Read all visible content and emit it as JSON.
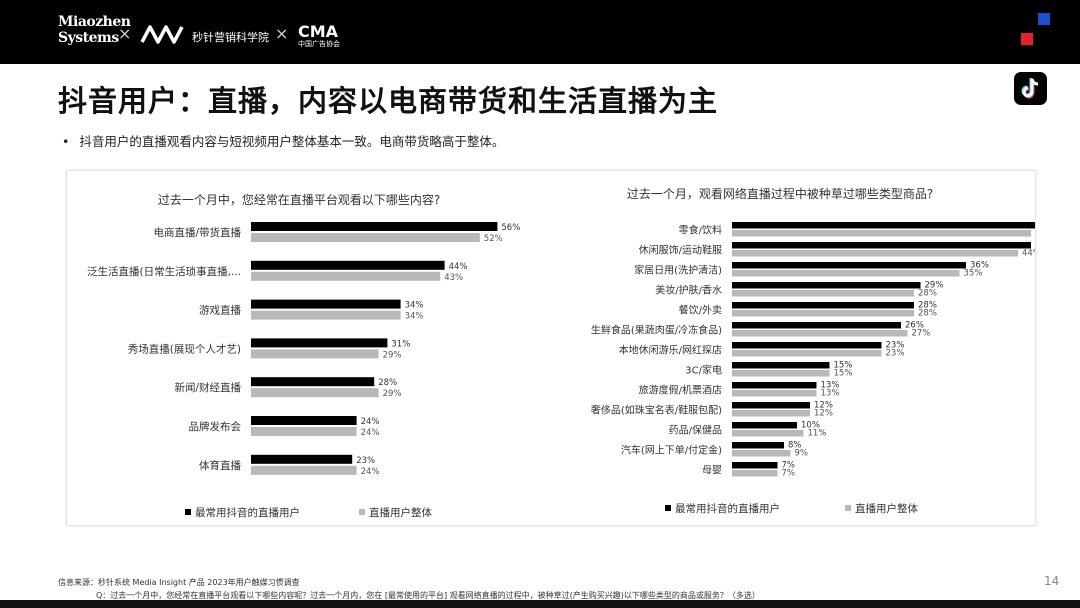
{
  "header": {
    "logo_miaozhen": "Miaozhen Systems",
    "logo_academy": "秒针营销科学院",
    "logo_cma": "CMA",
    "logo_cma_sub": "中国广告协会",
    "separator": "×"
  },
  "page_title": "抖音用户：直播，内容以电商带货和生活直播为主",
  "bullet_text": "抖音用户的直播观看内容与短视频用户整体基本一致。电商带货略高于整体。",
  "colors": {
    "series_primary": "#000000",
    "series_secondary": "#b8b8b8",
    "brand_blue": "#1a4fd6",
    "brand_red": "#e8202a"
  },
  "chart_data": [
    {
      "type": "bar",
      "orientation": "horizontal",
      "title": "过去一个月中，您经常在直播平台观看以下哪些内容?",
      "categories": [
        "电商直播/带货直播",
        "泛生活直播(日常生活琐事直播,...",
        "游戏直播",
        "秀场直播(展现个人才艺)",
        "新闻/财经直播",
        "品牌发布会",
        "体育直播"
      ],
      "series": [
        {
          "name": "最常用抖音的直播用户",
          "values": [
            56,
            44,
            34,
            31,
            28,
            24,
            23
          ],
          "labels": [
            "56%",
            "44%",
            "34%",
            "31%",
            "28%",
            "24%",
            "23%"
          ]
        },
        {
          "name": "直播用户整体",
          "values": [
            52,
            43,
            34,
            29,
            29,
            24,
            24
          ],
          "labels": [
            "52%",
            "43%",
            "34%",
            "29%",
            "29%",
            "24%",
            "24%"
          ]
        }
      ],
      "xlim": [
        0,
        100
      ],
      "unit": "%",
      "legend_position": "bottom"
    },
    {
      "type": "bar",
      "orientation": "horizontal",
      "title": "过去一个月，观看网络直播过程中被种草过哪些类型商品?",
      "categories": [
        "零食/饮料",
        "休闲服饰/运动鞋服",
        "家居日用(洗护清洁)",
        "美妆/护肤/香水",
        "餐饮/外卖",
        "生鲜食品(果蔬肉蛋/冷冻食品)",
        "本地休闲游乐/网红探店",
        "3C/家电",
        "旅游度假/机票酒店",
        "奢侈品(如珠宝名表/鞋服包配)",
        "药品/保健品",
        "汽车(网上下单/付定金)",
        "母婴"
      ],
      "series": [
        {
          "name": "最常用抖音的直播用户",
          "values": [
            47,
            46,
            36,
            29,
            28,
            26,
            23,
            15,
            13,
            12,
            10,
            8,
            7
          ],
          "labels": [
            "47%",
            "46%",
            "36%",
            "29%",
            "28%",
            "26%",
            "23%",
            "15%",
            "13%",
            "12%",
            "10%",
            "8%",
            "7%"
          ]
        },
        {
          "name": "直播用户整体",
          "values": [
            46,
            44,
            35,
            28,
            28,
            27,
            23,
            15,
            13,
            12,
            11,
            9,
            7
          ],
          "labels": [
            "46%",
            "44%",
            "35%",
            "28%",
            "28%",
            "27%",
            "23%",
            "15%",
            "13%",
            "12%",
            "11%",
            "9%",
            "7%"
          ]
        }
      ],
      "xlim": [
        0,
        100
      ],
      "unit": "%",
      "legend_position": "bottom"
    }
  ],
  "footer": {
    "source": "信息来源：秒针系统 Media Insight 产品 2023年用户触媒习惯调查",
    "question": "Q：过去一个月中，您经常在直播平台观看以下哪些内容呢？过去一个月内，您在 [最常使用的平台] 观看网络直播的过程中，被种草过(产生购买兴趣)以下哪些类型的商品或服务？（多选）",
    "page_number": "14"
  }
}
